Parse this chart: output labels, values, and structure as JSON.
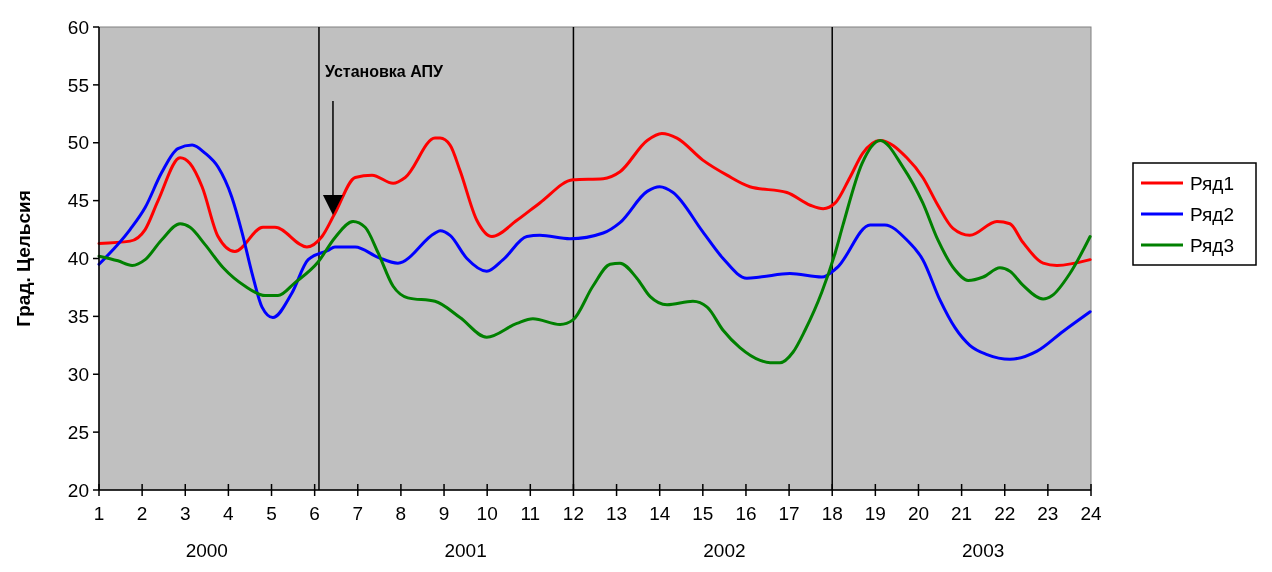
{
  "chart_data": {
    "type": "line",
    "ylabel": "Град. Цельсия",
    "xlim": [
      1,
      24
    ],
    "xticks": [
      1,
      2,
      3,
      4,
      5,
      6,
      7,
      8,
      9,
      10,
      11,
      12,
      13,
      14,
      15,
      16,
      17,
      18,
      19,
      20,
      21,
      22,
      23,
      24
    ],
    "ylim": [
      20,
      60
    ],
    "yticks": [
      20,
      25,
      30,
      35,
      40,
      45,
      50,
      55,
      60
    ],
    "grid": false,
    "legend": "right",
    "marker": "none",
    "line_style": "solid",
    "ref_lines": [
      {
        "axis": "x",
        "value": 6.1,
        "color": "#000000"
      },
      {
        "axis": "x",
        "value": 12,
        "color": "#000000"
      },
      {
        "axis": "x",
        "value": 18,
        "color": "#000000"
      }
    ],
    "annotations": [
      "Установка АПУ",
      "2000",
      "2001",
      "2002",
      "2003"
    ],
    "series": [
      {
        "name": "Ряд1",
        "color": "#ff0000",
        "x": [
          1,
          1.72,
          2.07,
          2.37,
          2.88,
          3.11,
          3.39,
          3.76,
          4.15,
          4.8,
          5.08,
          5.82,
          6.17,
          6.47,
          6.94,
          7.33,
          7.82,
          8.1,
          8.79,
          8.91,
          9.14,
          9.37,
          9.76,
          10.11,
          10.69,
          11.22,
          11.99,
          12.69,
          13.08,
          13.71,
          14.05,
          14.4,
          15,
          15.56,
          16.09,
          16.95,
          17.49,
          17.79,
          18.07,
          18.41,
          18.71,
          19.11,
          19.73,
          20.1,
          20.45,
          20.8,
          21.19,
          21.82,
          22.12,
          22.42,
          22.89,
          23.21,
          23.98
        ],
        "values": [
          41.3,
          41.5,
          42.5,
          45,
          48.7,
          48.2,
          46.2,
          41.9,
          40.6,
          42.7,
          42.7,
          41,
          41.9,
          43.9,
          47,
          47.2,
          46.5,
          47,
          50.4,
          50.4,
          49.8,
          47.6,
          43.3,
          41.9,
          43.3,
          44.8,
          46.8,
          46.9,
          47.5,
          50.2,
          50.8,
          50.4,
          48.5,
          47.2,
          46.2,
          45.7,
          44.6,
          44.3,
          44.8,
          47,
          49.1,
          50.2,
          48.7,
          47,
          44.6,
          42.6,
          42,
          43.2,
          43,
          41.4,
          39.6,
          39.4,
          39.9
        ]
      },
      {
        "name": "Ряд2",
        "color": "#0000ff",
        "x": [
          1,
          1.72,
          2.07,
          2.45,
          2.83,
          3.16,
          3.46,
          3.76,
          4.08,
          4.32,
          4.55,
          4.78,
          5.03,
          5.47,
          5.85,
          6.31,
          6.47,
          6.94,
          7.47,
          7.93,
          8.79,
          8.91,
          9.14,
          9.53,
          9.99,
          10.37,
          10.92,
          11.22,
          11.92,
          12.69,
          13.08,
          13.71,
          14,
          14.31,
          15,
          15.47,
          16.02,
          16.33,
          17.02,
          17.76,
          18.11,
          18.88,
          19.22,
          19.73,
          20.1,
          20.5,
          20.85,
          21.19,
          21.59,
          22.12,
          22.75,
          23.35,
          23.98
        ],
        "values": [
          39.5,
          42.5,
          44.4,
          47.4,
          49.5,
          49.8,
          49.1,
          47.9,
          45.3,
          42.2,
          38.7,
          35.8,
          34.9,
          37,
          39.9,
          40.7,
          41,
          41,
          40.1,
          39.6,
          42.2,
          42.4,
          42,
          40,
          38.9,
          39.9,
          41.9,
          42,
          41.7,
          42.2,
          43.1,
          45.8,
          46.2,
          45.7,
          42.3,
          40,
          38.3,
          38.4,
          38.7,
          38.4,
          39.2,
          42.9,
          42.9,
          41.6,
          39.9,
          36.4,
          34,
          32.5,
          31.7,
          31.3,
          32,
          33.7,
          35.4
        ]
      },
      {
        "name": "Ряд3",
        "color": "#008000",
        "x": [
          1,
          1.44,
          1.77,
          2.07,
          2.45,
          2.88,
          3.11,
          3.46,
          3.88,
          4.39,
          4.85,
          5.15,
          5.54,
          6.08,
          6.47,
          6.89,
          7.17,
          7.47,
          7.82,
          8.16,
          8.79,
          9.37,
          9.99,
          10.69,
          11.06,
          11.69,
          11.99,
          12.45,
          12.85,
          13.08,
          13.47,
          13.78,
          14.17,
          14.77,
          15.1,
          15.47,
          15.86,
          16.33,
          16.56,
          16.79,
          17.09,
          17.37,
          17.76,
          18.07,
          18.25,
          18.69,
          19.11,
          19.64,
          20.1,
          20.45,
          20.85,
          21.15,
          21.5,
          21.89,
          22.12,
          22.42,
          22.89,
          23.1,
          23.51,
          23.98
        ],
        "values": [
          40.2,
          39.8,
          39.4,
          39.9,
          41.6,
          43,
          42.7,
          41.2,
          39.2,
          37.6,
          36.8,
          36.8,
          37.9,
          39.7,
          41.8,
          43.2,
          42.7,
          40.5,
          37.6,
          36.6,
          36.3,
          34.9,
          33.2,
          34.4,
          34.8,
          34.3,
          34.7,
          37.6,
          39.5,
          39.6,
          38.3,
          36.7,
          36,
          36.3,
          35.8,
          33.8,
          32.3,
          31.2,
          31,
          31,
          31.9,
          33.8,
          37.1,
          40.5,
          42.9,
          48.2,
          50.2,
          47.9,
          44.8,
          41.6,
          39,
          38.1,
          38.4,
          39.2,
          38.9,
          37.7,
          36.5,
          36.8,
          38.7,
          41.9
        ]
      }
    ]
  }
}
